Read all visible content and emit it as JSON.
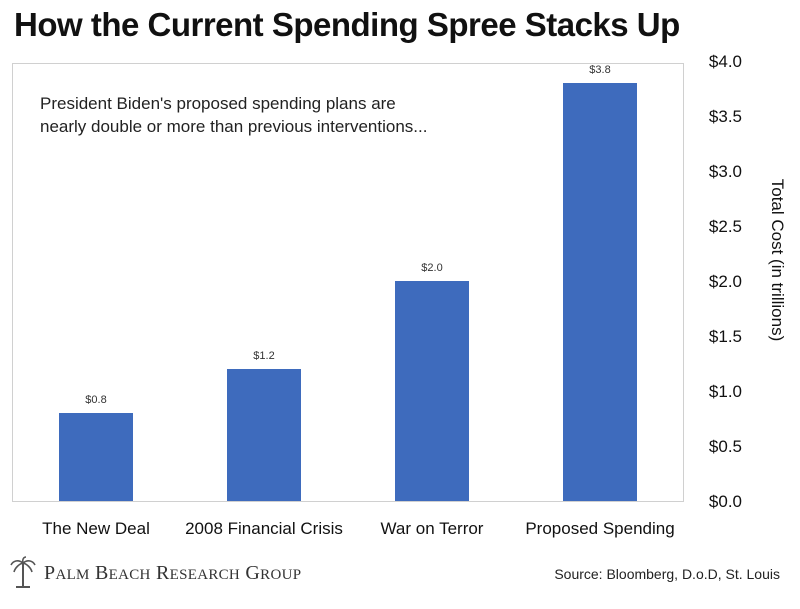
{
  "title": "How the Current Spending Spree Stacks Up",
  "subtitle_line1": "President Biden's proposed spending plans are",
  "subtitle_line2": "nearly double or more than previous interventions...",
  "source": "Source: Bloomberg, D.o.D, St. Louis",
  "brand": {
    "name": "Palm Beach Research Group",
    "logo_icon": "palm-tree-logo-icon"
  },
  "colors": {
    "bar": "#3e6bbd",
    "text": "#111111"
  },
  "chart_data": {
    "type": "bar",
    "categories": [
      "The New Deal",
      "2008 Financial Crisis",
      "War on Terror",
      "Proposed Spending"
    ],
    "values": [
      0.8,
      1.2,
      2.0,
      3.8
    ],
    "data_labels": [
      "$0.8",
      "$1.2",
      "$2.0",
      "$3.8"
    ],
    "ylabel": "Total Cost (in trillions)",
    "ylim": [
      0,
      4
    ],
    "yticks": [
      0,
      0.5,
      1,
      1.5,
      2,
      2.5,
      3,
      3.5,
      4
    ],
    "ytick_labels": [
      "$0.0",
      "$0.5",
      "$1.0",
      "$1.5",
      "$2.0",
      "$2.5",
      "$3.0",
      "$3.5",
      "$4.0"
    ],
    "y_axis_position": "right",
    "grid": false,
    "legend": false
  }
}
